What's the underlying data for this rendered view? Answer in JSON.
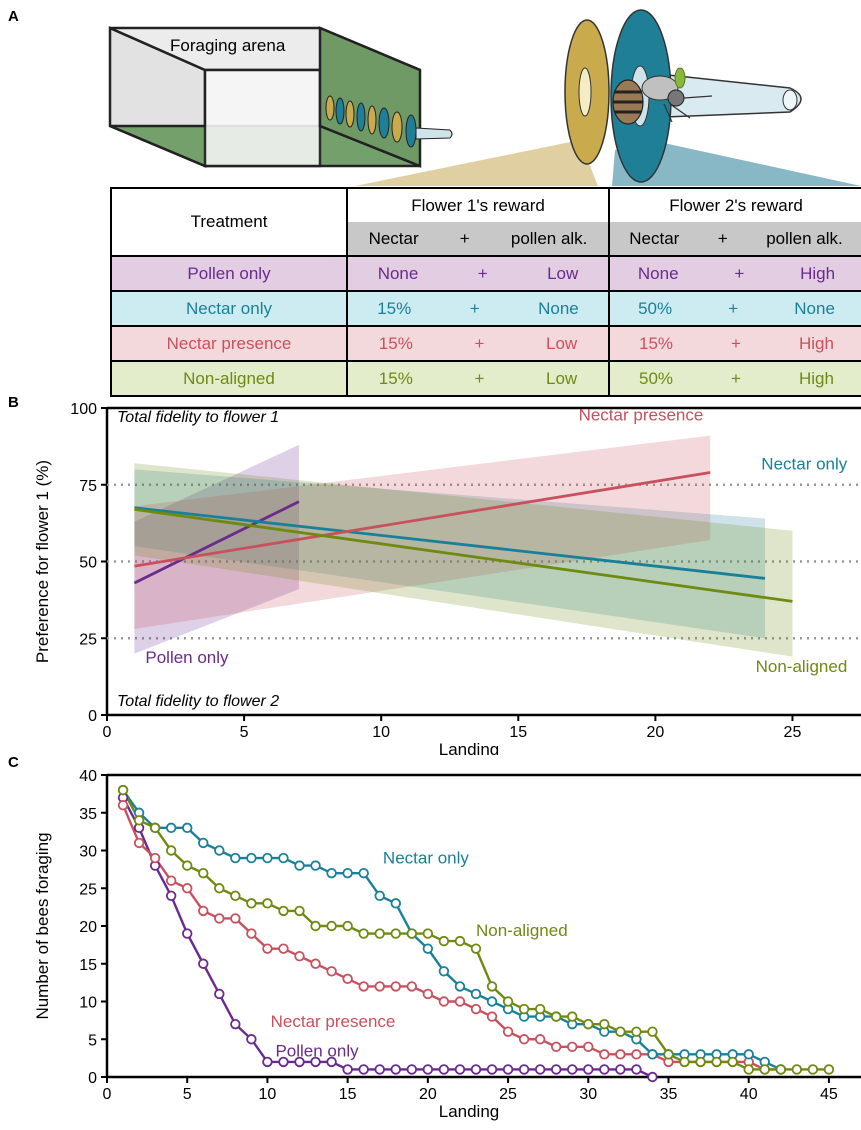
{
  "panels": {
    "a": "A",
    "b": "B",
    "c": "C"
  },
  "illustration": {
    "arena_label": "Foraging arena"
  },
  "colors": {
    "pollen_only": "#6a2a8e",
    "nectar_only": "#1a8099",
    "nectar_presence": "#c9505e",
    "non_aligned": "#6e8a10",
    "flower1": "#c9aa4c",
    "flower2": "#1f7f97"
  },
  "table": {
    "header": {
      "treatment": "Treatment",
      "flower1": "Flower 1's reward",
      "flower2": "Flower 2's reward",
      "sub": [
        "Nectar",
        "+",
        "pollen alk."
      ]
    },
    "rows": [
      {
        "name": "Pollen only",
        "f1": [
          "None",
          "+",
          "Low"
        ],
        "f2": [
          "None",
          "+",
          "High"
        ]
      },
      {
        "name": "Nectar only",
        "f1": [
          "15%",
          "+",
          "None"
        ],
        "f2": [
          "50%",
          "+",
          "None"
        ]
      },
      {
        "name": "Nectar presence",
        "f1": [
          "15%",
          "+",
          "Low"
        ],
        "f2": [
          "15%",
          "+",
          "High"
        ]
      },
      {
        "name": "Non-aligned",
        "f1": [
          "15%",
          "+",
          "Low"
        ],
        "f2": [
          "50%",
          "+",
          "High"
        ]
      }
    ]
  },
  "chart_data": [
    {
      "type": "line",
      "xlabel": "Landing",
      "ylabel": "Preference for flower 1  (%)",
      "xlim": [
        0,
        27.5
      ],
      "ylim": [
        0,
        100
      ],
      "xticks": [
        0,
        5,
        10,
        15,
        20,
        25
      ],
      "yticks": [
        0,
        25,
        50,
        75,
        100
      ],
      "reference_lines": [
        25,
        50,
        75
      ],
      "annotations": [
        "Total fidelity to flower 1",
        "Total fidelity to flower 2"
      ],
      "series": [
        {
          "name": "Pollen only",
          "x": [
            1,
            7
          ],
          "y": [
            43,
            69.5
          ],
          "ci_upper": [
            63,
            88
          ],
          "ci_lower": [
            20,
            41
          ]
        },
        {
          "name": "Nectar only",
          "x": [
            1,
            24
          ],
          "y": [
            67.5,
            44.5
          ],
          "ci_upper": [
            80,
            64
          ],
          "ci_lower": [
            55,
            25
          ]
        },
        {
          "name": "Nectar presence",
          "x": [
            1,
            22
          ],
          "y": [
            48.5,
            79
          ],
          "ci_upper": [
            68,
            91
          ],
          "ci_lower": [
            28,
            57
          ]
        },
        {
          "name": "Non-aligned",
          "x": [
            1,
            25
          ],
          "y": [
            67,
            37
          ],
          "ci_upper": [
            82,
            60
          ],
          "ci_lower": [
            52,
            19
          ]
        }
      ]
    },
    {
      "type": "line",
      "xlabel": "Landing",
      "ylabel": "Number of bees foraging",
      "xlim": [
        0,
        47
      ],
      "ylim": [
        0,
        40
      ],
      "xticks": [
        0,
        5,
        10,
        15,
        20,
        25,
        30,
        35,
        40,
        45
      ],
      "yticks": [
        0,
        5,
        10,
        15,
        20,
        25,
        30,
        35,
        40
      ],
      "series": [
        {
          "name": "Pollen only",
          "x": [
            1,
            2,
            3,
            4,
            5,
            6,
            7,
            8,
            9,
            10,
            11,
            12,
            13,
            14,
            15,
            16,
            17,
            18,
            19,
            20,
            21,
            22,
            23,
            24,
            25,
            26,
            27,
            28,
            29,
            30,
            31,
            32,
            33,
            34
          ],
          "y": [
            37,
            33,
            28,
            24,
            19,
            15,
            11,
            7,
            5,
            2,
            2,
            2,
            2,
            2,
            1,
            1,
            1,
            1,
            1,
            1,
            1,
            1,
            1,
            1,
            1,
            1,
            1,
            1,
            1,
            1,
            1,
            1,
            1,
            0
          ]
        },
        {
          "name": "Nectar only",
          "x": [
            1,
            2,
            3,
            4,
            5,
            6,
            7,
            8,
            9,
            10,
            11,
            12,
            13,
            14,
            15,
            16,
            17,
            18,
            19,
            20,
            21,
            22,
            23,
            24,
            25,
            26,
            27,
            28,
            29,
            30,
            31,
            32,
            33,
            34,
            35,
            36,
            37,
            38,
            39,
            40,
            41,
            42
          ],
          "y": [
            38,
            35,
            33,
            33,
            33,
            31,
            30,
            29,
            29,
            29,
            29,
            28,
            28,
            27,
            27,
            27,
            24,
            23,
            19,
            17,
            14,
            12,
            11,
            10,
            9,
            8,
            8,
            8,
            7,
            7,
            6,
            6,
            5,
            3,
            3,
            3,
            3,
            3,
            3,
            3,
            2,
            1
          ]
        },
        {
          "name": "Nectar presence",
          "x": [
            1,
            2,
            3,
            4,
            5,
            6,
            7,
            8,
            9,
            10,
            11,
            12,
            13,
            14,
            15,
            16,
            17,
            18,
            19,
            20,
            21,
            22,
            23,
            24,
            25,
            26,
            27,
            28,
            29,
            30,
            31,
            32,
            33,
            34,
            35,
            36,
            37,
            38,
            39,
            40,
            41,
            42
          ],
          "y": [
            36,
            31,
            29,
            26,
            25,
            22,
            21,
            21,
            19,
            17,
            17,
            16,
            15,
            14,
            13,
            12,
            12,
            12,
            12,
            11,
            10,
            10,
            9,
            8,
            6,
            5,
            5,
            4,
            4,
            4,
            3,
            3,
            3,
            3,
            2,
            2,
            2,
            2,
            2,
            2,
            1,
            1
          ]
        },
        {
          "name": "Non-aligned",
          "x": [
            1,
            2,
            3,
            4,
            5,
            6,
            7,
            8,
            9,
            10,
            11,
            12,
            13,
            14,
            15,
            16,
            17,
            18,
            19,
            20,
            21,
            22,
            23,
            24,
            25,
            26,
            27,
            28,
            29,
            30,
            31,
            32,
            33,
            34,
            35,
            36,
            37,
            38,
            39,
            40,
            41,
            42,
            43,
            44,
            45
          ],
          "y": [
            38,
            34,
            33,
            30,
            28,
            27,
            25,
            24,
            23,
            23,
            22,
            22,
            20,
            20,
            20,
            19,
            19,
            19,
            19,
            19,
            18,
            18,
            17,
            12,
            10,
            9,
            9,
            8,
            8,
            7,
            7,
            6,
            6,
            6,
            3,
            2,
            2,
            2,
            2,
            1,
            1,
            1,
            1,
            1,
            1
          ]
        }
      ]
    }
  ]
}
